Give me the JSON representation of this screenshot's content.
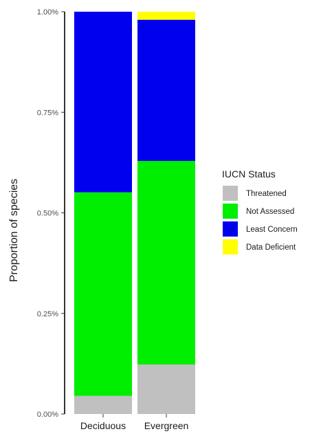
{
  "chart_data": {
    "type": "bar",
    "stacked": true,
    "categories": [
      "Deciduous",
      "Evergreen"
    ],
    "series": [
      {
        "name": "Threatened",
        "color": "#c0c0c0",
        "values": [
          0.045,
          0.123
        ]
      },
      {
        "name": "Not Assessed",
        "color": "#00ee00",
        "values": [
          0.506,
          0.506
        ]
      },
      {
        "name": "Least Concern",
        "color": "#0000ee",
        "values": [
          0.449,
          0.351
        ]
      },
      {
        "name": "Data Deficient",
        "color": "#ffff00",
        "values": [
          0.0,
          0.02
        ]
      }
    ],
    "ylabel": "Proportion of species",
    "xlabel": "",
    "ylim": [
      0,
      1
    ],
    "yticks": [
      0,
      0.25,
      0.5,
      0.75,
      1.0
    ],
    "ytick_labels": [
      "0.00%",
      "0.25%",
      "0.50%",
      "0.75%",
      "1.00%"
    ],
    "legend": {
      "title": "IUCN Status",
      "position": "right"
    },
    "grid": false
  }
}
